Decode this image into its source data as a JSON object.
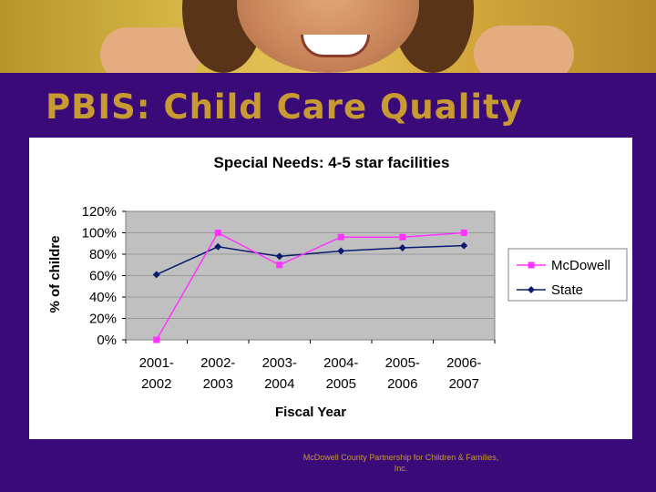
{
  "slide": {
    "title": "PBIS: Child Care Quality",
    "footer": "McDowell County Partnership for Children & Families, Inc."
  },
  "colors": {
    "background": "#3a0a78",
    "title": "#c89a32",
    "mcdowell": "#ff33ff",
    "state": "#0a1a6e",
    "plot_area": "#c0c0c0"
  },
  "chart_data": {
    "type": "line",
    "title": "Special Needs: 4-5 star facilities",
    "xlabel": "Fiscal Year",
    "ylabel": "% of childre",
    "categories": [
      [
        "2001-",
        "2002"
      ],
      [
        "2002-",
        "2003"
      ],
      [
        "2003-",
        "2004"
      ],
      [
        "2004-",
        "2005"
      ],
      [
        "2005-",
        "2006"
      ],
      [
        "2006-",
        "2007"
      ]
    ],
    "ylim": [
      0,
      120
    ],
    "yticks": [
      "0%",
      "20%",
      "40%",
      "60%",
      "80%",
      "100%",
      "120%"
    ],
    "grid": true,
    "legend_position": "right",
    "series": [
      {
        "name": "McDowell",
        "marker": "square",
        "color": "#ff33ff",
        "values": [
          0,
          100,
          70,
          96,
          96,
          100
        ]
      },
      {
        "name": "State",
        "marker": "diamond",
        "color": "#0a1a6e",
        "values": [
          61,
          87,
          78,
          83,
          86,
          88
        ]
      }
    ]
  }
}
